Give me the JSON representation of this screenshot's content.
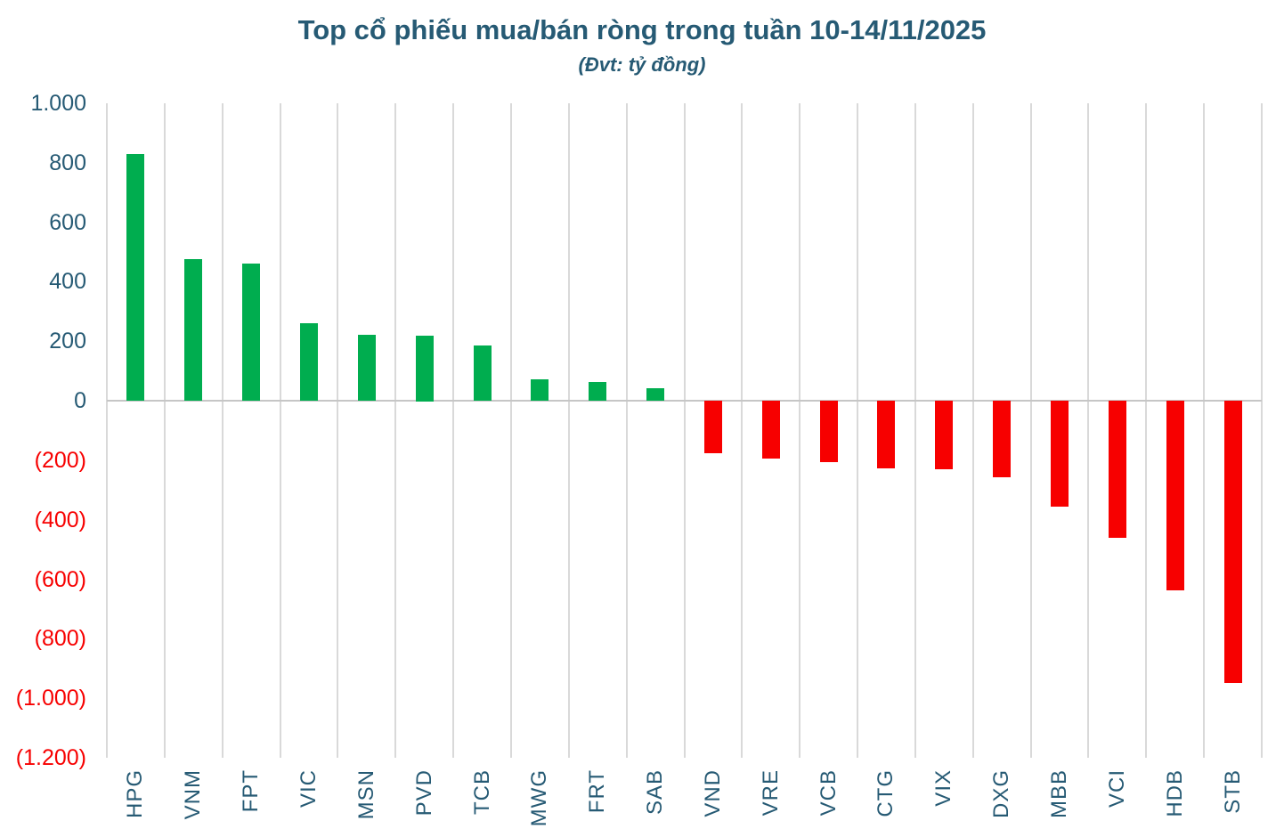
{
  "header": {
    "title": "Top cổ phiếu mua/bán ròng trong tuần 10-14/11/2025",
    "subtitle": "(Đvt: tỷ đồng)"
  },
  "chart_data": {
    "type": "bar",
    "title": "Top cổ phiếu mua/bán ròng trong tuần 10-14/11/2025",
    "subtitle": "(Đvt: tỷ đồng)",
    "unit": "tỷ đồng",
    "categories": [
      "HPG",
      "VNM",
      "FPT",
      "VIC",
      "MSN",
      "PVD",
      "TCB",
      "MWG",
      "FRT",
      "SAB",
      "VND",
      "VRE",
      "VCB",
      "CTG",
      "VIX",
      "DXG",
      "MBB",
      "VCI",
      "HDB",
      "STB"
    ],
    "values": [
      830,
      475,
      460,
      260,
      222,
      220,
      185,
      72,
      63,
      42,
      -178,
      -194,
      -206,
      -227,
      -231,
      -258,
      -357,
      -460,
      -637,
      -950
    ],
    "ylim": [
      -1200,
      1000
    ],
    "ytick_step": 200,
    "yticks": [
      {
        "value": 1000,
        "label": "1.000"
      },
      {
        "value": 800,
        "label": "800"
      },
      {
        "value": 600,
        "label": "600"
      },
      {
        "value": 400,
        "label": "400"
      },
      {
        "value": 200,
        "label": "200"
      },
      {
        "value": 0,
        "label": "0"
      },
      {
        "value": -200,
        "label": "(200)"
      },
      {
        "value": -400,
        "label": "(400)"
      },
      {
        "value": -600,
        "label": "(600)"
      },
      {
        "value": -800,
        "label": "(800)"
      },
      {
        "value": -1000,
        "label": "(1.000)"
      },
      {
        "value": -1200,
        "label": "(1.200)"
      }
    ],
    "grid": "vertical-only",
    "legend": "none",
    "colors": {
      "positive_bar": "#00ad4f",
      "negative_bar": "#f70000",
      "text": "#265a74",
      "negative_tick_text": "#f70000",
      "gridline": "#d9d9d9",
      "zero_axis": "#c6c6c6",
      "background": "#ffffff"
    }
  }
}
